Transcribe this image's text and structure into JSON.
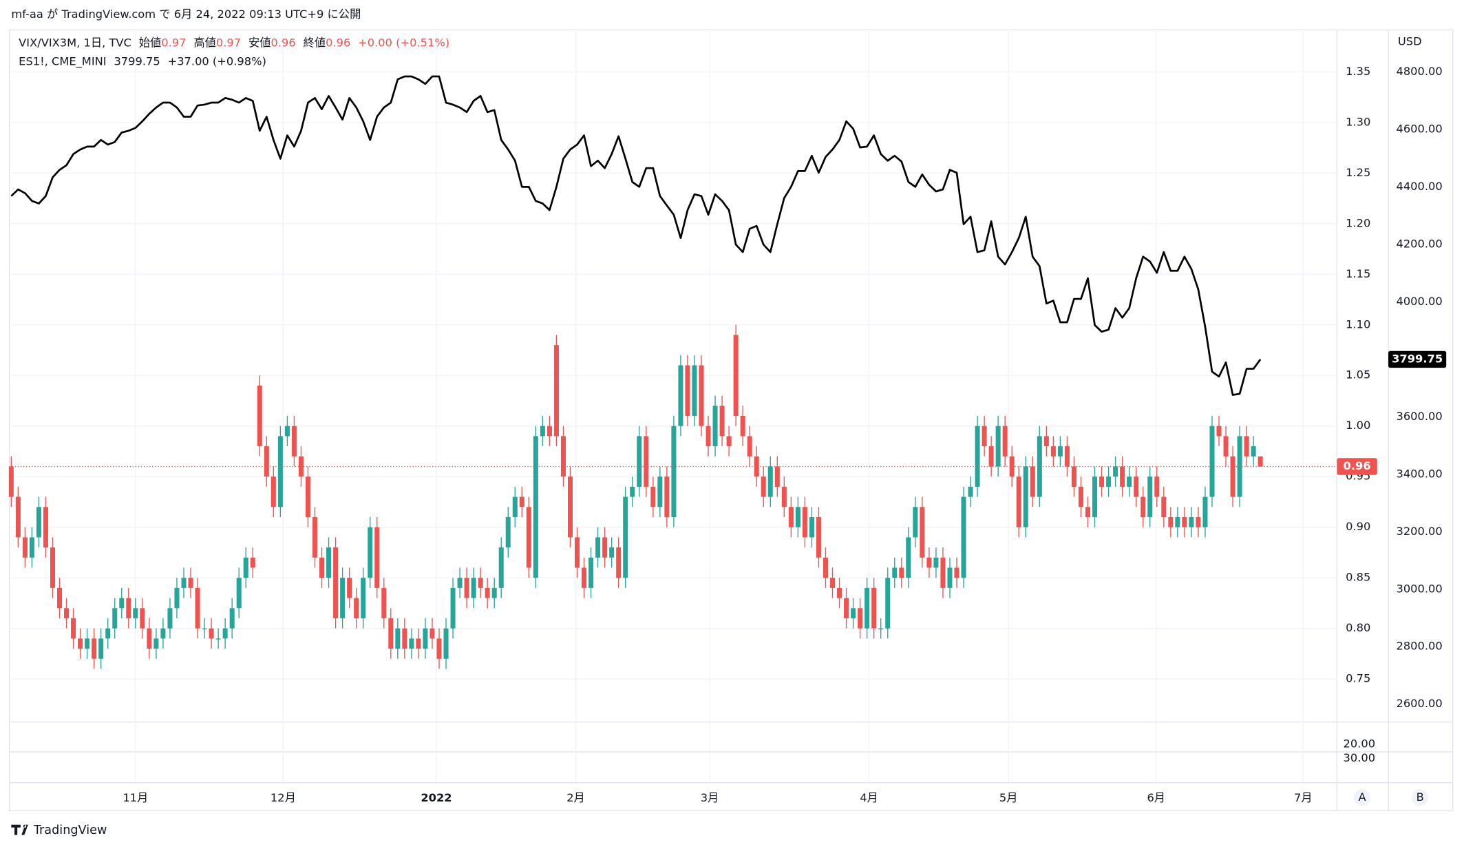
{
  "header": "mf-aa が TradingView.com で 6月 24, 2022 09:13 UTC+9 に公開",
  "brand": "TradingView",
  "chart_data": {
    "type": "candlestick",
    "legend": {
      "symbol": "VIX/VIX3M, 1日, TVC",
      "open_label": "始値",
      "open": 0.97,
      "high_label": "高値",
      "high": 0.97,
      "low_label": "安値",
      "low": 0.96,
      "close_label": "終値",
      "close": 0.96,
      "change": "+0.00 (+0.51%)"
    },
    "legend2": {
      "symbol": "ES1!, CME_MINI",
      "last": 3799.75,
      "change": "+37.00 (+0.98%)"
    },
    "y2_unit": "USD",
    "scale_buttons": [
      "A",
      "B"
    ],
    "grid": true,
    "categories": [
      null,
      null,
      null,
      null,
      null,
      null,
      null,
      null,
      null,
      null,
      null,
      null,
      null,
      null,
      null,
      null,
      null,
      null,
      null,
      null,
      null,
      null,
      null,
      null,
      null,
      null,
      null,
      null,
      null,
      null,
      null,
      null,
      null,
      null,
      null,
      null,
      null,
      null,
      null,
      null,
      null,
      null,
      null,
      null,
      null,
      null,
      null,
      null,
      null,
      null,
      null,
      null,
      null,
      null,
      null,
      null,
      null,
      null,
      null,
      null,
      null,
      null,
      null,
      null,
      null,
      null,
      null,
      null,
      null,
      null,
      null,
      null,
      null,
      null,
      null,
      null,
      null,
      null,
      null,
      null,
      null,
      null,
      null,
      null,
      null,
      null,
      null,
      null,
      null,
      null,
      null,
      null,
      null,
      null,
      null,
      null,
      null,
      null,
      null,
      null,
      null,
      null,
      null,
      null,
      null,
      null,
      null,
      null,
      null,
      null,
      null,
      null,
      null,
      null,
      null,
      null,
      null,
      null,
      null,
      null,
      null,
      null,
      null,
      null,
      null,
      null,
      null,
      null,
      null,
      null,
      null,
      null,
      null,
      null,
      null,
      null,
      null,
      null,
      null,
      null,
      null,
      null,
      null,
      null,
      null,
      null,
      null,
      null,
      null,
      null,
      null,
      null,
      null,
      null,
      null,
      null,
      null,
      null,
      null,
      null,
      null,
      null,
      null,
      null,
      null,
      null,
      null,
      null,
      null,
      null,
      null,
      null,
      null,
      null,
      null,
      null,
      null,
      null,
      null,
      null,
      null,
      null
    ],
    "xlim": [
      -0.27,
      192.1
    ],
    "xticks": [
      {
        "value": 18.0,
        "label": "11月"
      },
      {
        "value": 39.4,
        "label": "12月"
      },
      {
        "value": 61.6,
        "label": "2022"
      },
      {
        "value": 81.8,
        "label": "2月"
      },
      {
        "value": 101.2,
        "label": "3月"
      },
      {
        "value": 124.3,
        "label": "4月"
      },
      {
        "value": 144.5,
        "label": "5月"
      },
      {
        "value": 165.9,
        "label": "6月"
      },
      {
        "value": 187.2,
        "label": "7月"
      }
    ],
    "ylim": [
      0.7103,
      1.3915
    ],
    "yticks": [
      0.75,
      {
        "value": 0.8,
        "label": "0.80"
      },
      0.85,
      {
        "value": 0.9,
        "label": "0.90"
      },
      0.95,
      {
        "value": 1.0,
        "label": "1.00"
      },
      1.05,
      {
        "value": 1.1,
        "label": "1.10"
      },
      1.15,
      {
        "value": 1.2,
        "label": "1.20"
      },
      1.25,
      {
        "value": 1.3,
        "label": "1.30"
      },
      1.35
    ],
    "y2lim": [
      2548,
      4946
    ],
    "y2ticks": [
      {
        "value": 2600,
        "label": "2600.00"
      },
      {
        "value": 2800,
        "label": "2800.00"
      },
      {
        "value": 3000,
        "label": "3000.00"
      },
      {
        "value": 3200,
        "label": "3200.00"
      },
      {
        "value": 3400,
        "label": "3400.00"
      },
      {
        "value": 3600,
        "label": "3600.00"
      },
      {
        "value": 3800,
        "label": "3800.00"
      },
      {
        "value": 4000,
        "label": "4000.00"
      },
      {
        "value": 4200,
        "label": "4200.00"
      },
      {
        "value": 4400,
        "label": "4400.00"
      },
      {
        "value": 4600,
        "label": "4600.00"
      },
      {
        "value": 4800,
        "label": "4800.00"
      }
    ],
    "lower_pane": {
      "ylim": [
        47.33,
        7.33
      ],
      "yticks": [
        {
          "value": 20,
          "label": "20.00"
        },
        {
          "value": 30,
          "label": "30.00"
        }
      ]
    },
    "series": [
      {
        "type": "candlestick",
        "up_color": "#26a69a",
        "down_color": "#ef5350",
        "open": [
          0.96,
          0.93,
          0.89,
          0.87,
          0.89,
          0.92,
          0.88,
          0.84,
          0.82,
          0.81,
          0.79,
          0.78,
          0.79,
          0.77,
          0.79,
          0.8,
          0.82,
          0.83,
          0.81,
          0.82,
          0.8,
          0.78,
          0.79,
          0.8,
          0.82,
          0.84,
          0.85,
          0.84,
          0.8,
          0.8,
          0.79,
          0.79,
          0.8,
          0.82,
          0.85,
          0.87,
          1.04,
          0.98,
          0.95,
          0.92,
          0.99,
          1.0,
          0.97,
          0.95,
          0.91,
          0.87,
          0.85,
          0.88,
          0.81,
          0.85,
          0.83,
          0.81,
          0.85,
          0.9,
          0.84,
          0.81,
          0.78,
          0.8,
          0.78,
          0.79,
          0.78,
          0.8,
          0.79,
          0.77,
          0.8,
          0.84,
          0.85,
          0.83,
          0.85,
          0.84,
          0.83,
          0.84,
          0.88,
          0.91,
          0.93,
          0.92,
          0.85,
          0.99,
          1.0,
          1.08,
          0.99,
          0.95,
          0.89,
          0.86,
          0.84,
          0.87,
          0.89,
          0.87,
          0.88,
          0.85,
          0.93,
          0.94,
          0.99,
          0.94,
          0.92,
          0.95,
          0.91,
          1.0,
          1.06,
          1.01,
          1.06,
          1.0,
          0.98,
          1.02,
          0.99,
          1.09,
          1.01,
          0.99,
          0.97,
          0.95,
          0.93,
          0.96,
          0.94,
          0.92,
          0.9,
          0.92,
          0.89,
          0.91,
          0.87,
          0.85,
          0.84,
          0.83,
          0.81,
          0.82,
          0.8,
          0.84,
          0.8,
          0.8,
          0.85,
          0.86,
          0.85,
          0.89,
          0.92,
          0.87,
          0.86,
          0.87,
          0.84,
          0.86,
          0.85,
          0.93,
          0.94,
          1.0,
          0.98,
          0.96,
          1.0,
          0.97,
          0.95,
          0.9,
          0.96,
          0.93,
          0.99,
          0.98,
          0.97,
          0.98,
          0.96,
          0.94,
          0.92,
          0.91,
          0.95,
          0.94,
          0.95,
          0.96,
          0.94,
          0.95,
          0.93,
          0.91,
          0.95,
          0.93,
          0.91,
          0.9,
          0.91,
          0.9,
          0.91,
          0.9,
          0.93,
          1.0,
          0.99,
          0.97,
          0.93,
          0.99,
          0.97,
          0.97
        ],
        "high": [
          0.97,
          0.94,
          0.9,
          0.9,
          0.93,
          0.93,
          0.89,
          0.85,
          0.83,
          0.82,
          0.8,
          0.8,
          0.8,
          0.8,
          0.81,
          0.83,
          0.84,
          0.84,
          0.83,
          0.83,
          0.81,
          0.8,
          0.81,
          0.83,
          0.85,
          0.86,
          0.86,
          0.85,
          0.81,
          0.81,
          0.8,
          0.81,
          0.83,
          0.86,
          0.88,
          0.88,
          1.05,
          0.99,
          0.96,
          1.0,
          1.01,
          1.01,
          0.98,
          0.96,
          0.92,
          0.88,
          0.89,
          0.89,
          0.86,
          0.86,
          0.84,
          0.86,
          0.91,
          0.91,
          0.85,
          0.82,
          0.81,
          0.81,
          0.8,
          0.8,
          0.81,
          0.81,
          0.8,
          0.81,
          0.85,
          0.86,
          0.86,
          0.86,
          0.86,
          0.85,
          0.85,
          0.89,
          0.92,
          0.94,
          0.94,
          0.93,
          1.0,
          1.01,
          1.01,
          1.09,
          1.0,
          0.96,
          0.9,
          0.87,
          0.88,
          0.9,
          0.9,
          0.89,
          0.89,
          0.94,
          0.95,
          1.0,
          1.0,
          0.95,
          0.96,
          0.96,
          1.01,
          1.07,
          1.07,
          1.07,
          1.07,
          1.01,
          1.03,
          1.03,
          1.0,
          1.1,
          1.02,
          1.0,
          0.98,
          0.96,
          0.97,
          0.97,
          0.95,
          0.93,
          0.93,
          0.93,
          0.92,
          0.92,
          0.88,
          0.86,
          0.85,
          0.84,
          0.83,
          0.83,
          0.85,
          0.85,
          0.81,
          0.86,
          0.87,
          0.87,
          0.9,
          0.93,
          0.93,
          0.88,
          0.88,
          0.88,
          0.87,
          0.87,
          0.94,
          0.95,
          1.01,
          1.01,
          0.99,
          1.01,
          1.01,
          0.98,
          0.96,
          0.97,
          0.97,
          1.0,
          1.0,
          0.99,
          0.99,
          0.99,
          0.97,
          0.95,
          0.93,
          0.96,
          0.96,
          0.96,
          0.97,
          0.97,
          0.96,
          0.96,
          0.94,
          0.96,
          0.96,
          0.94,
          0.92,
          0.92,
          0.92,
          0.92,
          0.92,
          0.94,
          1.01,
          1.01,
          1.0,
          0.98,
          1.0,
          1.0,
          0.99,
          0.97
        ],
        "low": [
          0.92,
          0.88,
          0.86,
          0.86,
          0.88,
          0.87,
          0.83,
          0.81,
          0.8,
          0.78,
          0.77,
          0.77,
          0.76,
          0.76,
          0.78,
          0.79,
          0.81,
          0.8,
          0.8,
          0.79,
          0.77,
          0.77,
          0.78,
          0.79,
          0.81,
          0.83,
          0.83,
          0.79,
          0.79,
          0.78,
          0.78,
          0.78,
          0.79,
          0.81,
          0.84,
          0.85,
          0.97,
          0.94,
          0.91,
          0.91,
          0.98,
          0.96,
          0.94,
          0.9,
          0.86,
          0.84,
          0.84,
          0.8,
          0.8,
          0.82,
          0.8,
          0.8,
          0.84,
          0.83,
          0.8,
          0.77,
          0.77,
          0.77,
          0.77,
          0.77,
          0.77,
          0.78,
          0.76,
          0.76,
          0.79,
          0.83,
          0.82,
          0.82,
          0.83,
          0.82,
          0.82,
          0.83,
          0.87,
          0.9,
          0.91,
          0.85,
          0.84,
          0.98,
          0.98,
          0.98,
          0.94,
          0.88,
          0.85,
          0.83,
          0.83,
          0.86,
          0.86,
          0.86,
          0.84,
          0.84,
          0.92,
          0.93,
          0.93,
          0.91,
          0.91,
          0.9,
          0.9,
          0.99,
          1.0,
          1.0,
          0.99,
          0.97,
          0.97,
          0.98,
          0.97,
          1.0,
          0.98,
          0.96,
          0.94,
          0.92,
          0.92,
          0.93,
          0.91,
          0.89,
          0.89,
          0.88,
          0.88,
          0.86,
          0.84,
          0.83,
          0.82,
          0.8,
          0.8,
          0.79,
          0.79,
          0.79,
          0.79,
          0.79,
          0.84,
          0.84,
          0.84,
          0.88,
          0.86,
          0.85,
          0.85,
          0.83,
          0.83,
          0.84,
          0.84,
          0.92,
          0.93,
          0.97,
          0.95,
          0.95,
          0.96,
          0.94,
          0.89,
          0.89,
          0.92,
          0.92,
          0.97,
          0.96,
          0.96,
          0.95,
          0.93,
          0.91,
          0.9,
          0.9,
          0.93,
          0.93,
          0.94,
          0.93,
          0.93,
          0.92,
          0.9,
          0.9,
          0.92,
          0.9,
          0.89,
          0.89,
          0.89,
          0.89,
          0.89,
          0.89,
          0.92,
          0.98,
          0.96,
          0.92,
          0.92,
          0.96,
          0.96,
          0.96
        ],
        "close": [
          0.93,
          0.89,
          0.87,
          0.89,
          0.92,
          0.88,
          0.84,
          0.82,
          0.81,
          0.79,
          0.78,
          0.79,
          0.77,
          0.79,
          0.8,
          0.82,
          0.83,
          0.81,
          0.82,
          0.8,
          0.78,
          0.79,
          0.8,
          0.82,
          0.84,
          0.85,
          0.84,
          0.8,
          0.8,
          0.79,
          0.79,
          0.8,
          0.82,
          0.85,
          0.87,
          0.86,
          0.98,
          0.95,
          0.92,
          0.99,
          1.0,
          0.97,
          0.95,
          0.91,
          0.87,
          0.85,
          0.88,
          0.81,
          0.85,
          0.83,
          0.81,
          0.85,
          0.9,
          0.84,
          0.81,
          0.78,
          0.8,
          0.78,
          0.79,
          0.78,
          0.8,
          0.79,
          0.77,
          0.8,
          0.84,
          0.85,
          0.83,
          0.85,
          0.84,
          0.83,
          0.84,
          0.88,
          0.91,
          0.93,
          0.92,
          0.86,
          0.99,
          1.0,
          0.99,
          0.99,
          0.95,
          0.89,
          0.86,
          0.84,
          0.87,
          0.89,
          0.87,
          0.88,
          0.85,
          0.93,
          0.94,
          0.99,
          0.94,
          0.92,
          0.95,
          0.91,
          1.0,
          1.06,
          1.01,
          1.06,
          1.0,
          0.98,
          1.02,
          0.99,
          0.98,
          1.01,
          0.99,
          0.97,
          0.95,
          0.93,
          0.96,
          0.94,
          0.92,
          0.9,
          0.92,
          0.89,
          0.91,
          0.87,
          0.85,
          0.84,
          0.83,
          0.81,
          0.82,
          0.8,
          0.84,
          0.8,
          0.8,
          0.85,
          0.86,
          0.85,
          0.89,
          0.92,
          0.87,
          0.86,
          0.87,
          0.84,
          0.86,
          0.85,
          0.93,
          0.94,
          1.0,
          0.98,
          0.96,
          1.0,
          0.97,
          0.95,
          0.9,
          0.96,
          0.93,
          0.99,
          0.98,
          0.97,
          0.98,
          0.96,
          0.94,
          0.92,
          0.91,
          0.95,
          0.94,
          0.95,
          0.96,
          0.94,
          0.95,
          0.93,
          0.91,
          0.95,
          0.93,
          0.91,
          0.9,
          0.91,
          0.9,
          0.91,
          0.9,
          0.93,
          1.0,
          0.99,
          0.97,
          0.93,
          0.99,
          0.97,
          0.98,
          0.96
        ]
      },
      {
        "type": "line",
        "axis": "y2",
        "color": "#000000",
        "values": [
          4368,
          4391,
          4378,
          4351,
          4342,
          4368,
          4433,
          4459,
          4475,
          4514,
          4530,
          4540,
          4540,
          4563,
          4547,
          4556,
          4589,
          4595,
          4605,
          4628,
          4654,
          4676,
          4693,
          4693,
          4676,
          4644,
          4644,
          4683,
          4686,
          4693,
          4693,
          4709,
          4703,
          4693,
          4709,
          4699,
          4595,
          4644,
          4563,
          4498,
          4579,
          4540,
          4595,
          4693,
          4709,
          4670,
          4716,
          4676,
          4634,
          4709,
          4676,
          4628,
          4563,
          4644,
          4676,
          4693,
          4774,
          4784,
          4784,
          4774,
          4758,
          4784,
          4784,
          4693,
          4686,
          4676,
          4660,
          4699,
          4716,
          4660,
          4667,
          4563,
          4530,
          4491,
          4400,
          4400,
          4351,
          4342,
          4319,
          4400,
          4498,
          4530,
          4547,
          4579,
          4472,
          4491,
          4465,
          4514,
          4576,
          4498,
          4417,
          4400,
          4465,
          4465,
          4368,
          4335,
          4303,
          4222,
          4319,
          4374,
          4368,
          4303,
          4374,
          4351,
          4319,
          4199,
          4173,
          4254,
          4264,
          4199,
          4173,
          4270,
          4361,
          4400,
          4455,
          4455,
          4508,
          4449,
          4504,
          4530,
          4563,
          4628,
          4602,
          4537,
          4540,
          4579,
          4514,
          4491,
          4508,
          4488,
          4417,
          4400,
          4443,
          4407,
          4384,
          4391,
          4459,
          4449,
          4270,
          4296,
          4173,
          4179,
          4280,
          4157,
          4130,
          4173,
          4222,
          4296,
          4157,
          4124,
          3994,
          4004,
          3929,
          3929,
          4010,
          4010,
          4082,
          3919,
          3896,
          3903,
          3978,
          3945,
          3978,
          4082,
          4157,
          4140,
          4101,
          4173,
          4108,
          4108,
          4157,
          4114,
          4043,
          3913,
          3757,
          3740,
          3789,
          3676,
          3680,
          3767,
          3767,
          3799.75
        ]
      }
    ]
  }
}
